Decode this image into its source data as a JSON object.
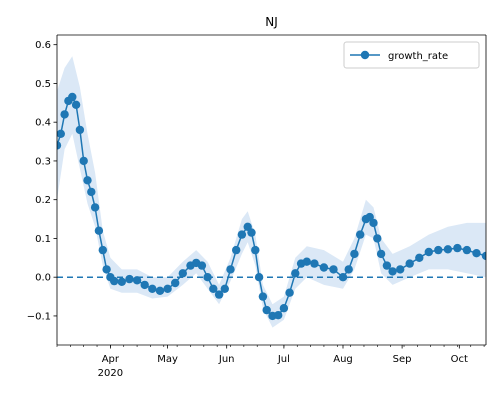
{
  "chart_data": {
    "type": "line",
    "title": "NJ",
    "xlabel": "",
    "ylabel": "",
    "ylim": [
      -0.175,
      0.625
    ],
    "xlim_day": [
      0,
      225
    ],
    "grid": false,
    "legend_placement": "top-right",
    "x_ticks": [
      {
        "day": 28,
        "label": "Apr",
        "sub": "2020"
      },
      {
        "day": 58,
        "label": "May",
        "sub": ""
      },
      {
        "day": 89,
        "label": "Jun",
        "sub": ""
      },
      {
        "day": 119,
        "label": "Jul",
        "sub": ""
      },
      {
        "day": 150,
        "label": "Aug",
        "sub": ""
      },
      {
        "day": 181,
        "label": "Sep",
        "sub": ""
      },
      {
        "day": 211,
        "label": "Oct",
        "sub": ""
      }
    ],
    "y_ticks": [
      -0.1,
      0.0,
      0.1,
      0.2,
      0.3,
      0.4,
      0.5,
      0.6
    ],
    "reference_line": {
      "y": 0.0,
      "style": "dashed"
    },
    "series": [
      {
        "name": "growth_rate",
        "color": "#1f77b4",
        "marker": "circle",
        "band_color": "#dbe8f6",
        "points": [
          [
            0,
            0.34
          ],
          [
            2,
            0.37
          ],
          [
            4,
            0.42
          ],
          [
            6,
            0.455
          ],
          [
            8,
            0.465
          ],
          [
            10,
            0.445
          ],
          [
            12,
            0.38
          ],
          [
            14,
            0.3
          ],
          [
            16,
            0.25
          ],
          [
            18,
            0.22
          ],
          [
            20,
            0.18
          ],
          [
            22,
            0.12
          ],
          [
            24,
            0.07
          ],
          [
            26,
            0.02
          ],
          [
            28,
            0.0
          ],
          [
            30,
            -0.01
          ],
          [
            34,
            -0.012
          ],
          [
            38,
            -0.005
          ],
          [
            42,
            -0.008
          ],
          [
            46,
            -0.02
          ],
          [
            50,
            -0.03
          ],
          [
            54,
            -0.035
          ],
          [
            58,
            -0.03
          ],
          [
            62,
            -0.015
          ],
          [
            66,
            0.01
          ],
          [
            70,
            0.03
          ],
          [
            73,
            0.037
          ],
          [
            76,
            0.03
          ],
          [
            79,
            0.0
          ],
          [
            82,
            -0.03
          ],
          [
            85,
            -0.045
          ],
          [
            88,
            -0.03
          ],
          [
            91,
            0.02
          ],
          [
            94,
            0.07
          ],
          [
            97,
            0.11
          ],
          [
            100,
            0.13
          ],
          [
            102,
            0.115
          ],
          [
            104,
            0.07
          ],
          [
            106,
            0.0
          ],
          [
            108,
            -0.05
          ],
          [
            110,
            -0.085
          ],
          [
            113,
            -0.1
          ],
          [
            116,
            -0.098
          ],
          [
            119,
            -0.08
          ],
          [
            122,
            -0.04
          ],
          [
            125,
            0.01
          ],
          [
            128,
            0.035
          ],
          [
            131,
            0.04
          ],
          [
            135,
            0.035
          ],
          [
            140,
            0.025
          ],
          [
            145,
            0.02
          ],
          [
            150,
            0.0
          ],
          [
            153,
            0.02
          ],
          [
            156,
            0.06
          ],
          [
            159,
            0.11
          ],
          [
            162,
            0.15
          ],
          [
            164,
            0.155
          ],
          [
            166,
            0.14
          ],
          [
            168,
            0.1
          ],
          [
            170,
            0.06
          ],
          [
            173,
            0.03
          ],
          [
            176,
            0.015
          ],
          [
            180,
            0.02
          ],
          [
            185,
            0.035
          ],
          [
            190,
            0.05
          ],
          [
            195,
            0.065
          ],
          [
            200,
            0.07
          ],
          [
            205,
            0.072
          ],
          [
            210,
            0.075
          ],
          [
            215,
            0.07
          ],
          [
            220,
            0.062
          ],
          [
            225,
            0.055
          ]
        ],
        "band": [
          [
            0,
            0.2,
            0.48
          ],
          [
            4,
            0.33,
            0.54
          ],
          [
            8,
            0.37,
            0.57
          ],
          [
            12,
            0.28,
            0.49
          ],
          [
            16,
            0.19,
            0.37
          ],
          [
            20,
            0.13,
            0.27
          ],
          [
            24,
            0.03,
            0.12
          ],
          [
            28,
            -0.03,
            0.05
          ],
          [
            34,
            -0.04,
            0.02
          ],
          [
            42,
            -0.04,
            0.02
          ],
          [
            50,
            -0.055,
            0.0
          ],
          [
            58,
            -0.05,
            0.0
          ],
          [
            66,
            -0.02,
            0.04
          ],
          [
            73,
            0.01,
            0.07
          ],
          [
            79,
            -0.03,
            0.04
          ],
          [
            85,
            -0.07,
            -0.02
          ],
          [
            91,
            -0.01,
            0.05
          ],
          [
            97,
            0.06,
            0.15
          ],
          [
            100,
            0.09,
            0.17
          ],
          [
            104,
            0.03,
            0.11
          ],
          [
            108,
            -0.08,
            -0.02
          ],
          [
            113,
            -0.13,
            -0.07
          ],
          [
            119,
            -0.11,
            -0.05
          ],
          [
            125,
            -0.03,
            0.05
          ],
          [
            131,
            0.0,
            0.08
          ],
          [
            140,
            -0.02,
            0.07
          ],
          [
            150,
            -0.03,
            0.04
          ],
          [
            156,
            0.02,
            0.1
          ],
          [
            162,
            0.11,
            0.2
          ],
          [
            166,
            0.1,
            0.18
          ],
          [
            170,
            0.01,
            0.1
          ],
          [
            176,
            -0.02,
            0.06
          ],
          [
            185,
            0.0,
            0.08
          ],
          [
            195,
            0.02,
            0.11
          ],
          [
            205,
            0.02,
            0.13
          ],
          [
            215,
            0.01,
            0.14
          ],
          [
            225,
            0.0,
            0.14
          ]
        ]
      }
    ]
  }
}
